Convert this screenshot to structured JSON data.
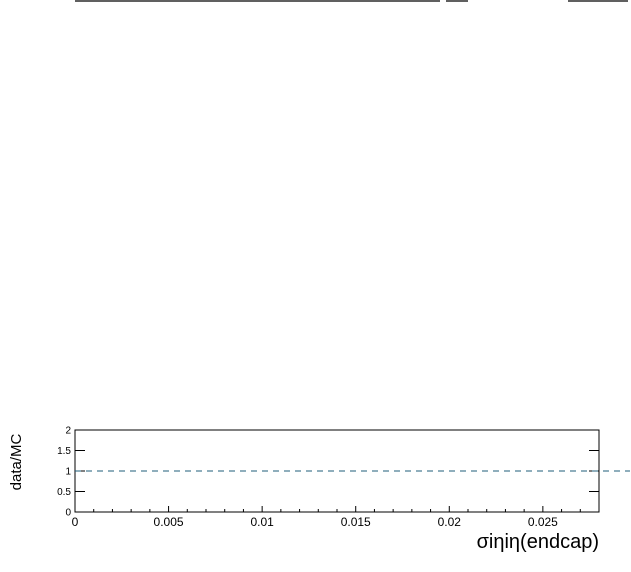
{
  "chart_data": {
    "type": "line",
    "title": "",
    "xlabel": "σiηiη(endcap)",
    "ylabel": "data/MC",
    "xlim": [
      0,
      0.028
    ],
    "ylim": [
      0,
      2
    ],
    "x_ticks": [
      "0",
      "0.005",
      "0.01",
      "0.015",
      "0.02",
      "0.025"
    ],
    "y_ticks": [
      "0",
      "0.5",
      "1",
      "1.5",
      "2"
    ],
    "x_tick_values": [
      0,
      0.005,
      0.01,
      0.015,
      0.02,
      0.025
    ],
    "y_tick_values": [
      0,
      0.5,
      1,
      1.5,
      2
    ],
    "reference_line": {
      "y": 1,
      "style": "dashed"
    },
    "series": [],
    "grid": false,
    "legend": "none",
    "colors": {
      "reference_line": "#1f5c7a",
      "axis": "#000000",
      "upper_pad_line": "#000000"
    }
  }
}
